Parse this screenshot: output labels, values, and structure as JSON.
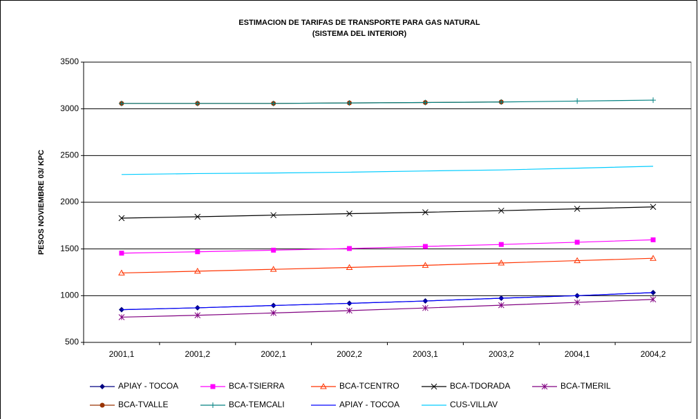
{
  "chart_data": {
    "type": "line",
    "title": "ESTIMACION DE TARIFAS DE TRANSPORTE PARA GAS NATURAL",
    "subtitle": "(SISTEMA DEL INTERIOR)",
    "y_label": "PESOS NOVIEMBRE 03/ KPC",
    "categories": [
      "2001,1",
      "2001,2",
      "2002,1",
      "2002,2",
      "2003,1",
      "2003,2",
      "2004,1",
      "2004,2"
    ],
    "ylim": [
      500,
      3500
    ],
    "yticks": [
      500,
      1000,
      1500,
      2000,
      2500,
      3000,
      3500
    ],
    "grid": true,
    "series": [
      {
        "name": "APIAY - TOCOA",
        "color": "#000080",
        "marker": "diamond",
        "values": [
          850,
          870,
          895,
          918,
          943,
          973,
          1000,
          1033
        ]
      },
      {
        "name": "BCA-TSIERRA",
        "color": "#ff00ff",
        "marker": "square",
        "values": [
          1455,
          1470,
          1487,
          1505,
          1527,
          1548,
          1572,
          1598
        ]
      },
      {
        "name": "BCA-TCENTRO",
        "color": "#ff3300",
        "marker": "triangle",
        "values": [
          1243,
          1262,
          1282,
          1302,
          1325,
          1350,
          1375,
          1400
        ]
      },
      {
        "name": "BCA-TDORADA",
        "color": "#000000",
        "marker": "x",
        "values": [
          1830,
          1845,
          1862,
          1878,
          1893,
          1910,
          1930,
          1950
        ]
      },
      {
        "name": "BCA-TMERIL",
        "color": "#800080",
        "marker": "star",
        "values": [
          770,
          790,
          815,
          840,
          868,
          898,
          928,
          960
        ]
      },
      {
        "name": "BCA-TVALLE",
        "color": "#993300",
        "marker": "circle",
        "values": [
          3058,
          3058,
          3058,
          3063,
          3068,
          3073,
          null,
          null
        ]
      },
      {
        "name": "BCA-TEMCALI",
        "color": "#008080",
        "marker": "plus",
        "values": [
          3058,
          3058,
          3058,
          3063,
          3068,
          3073,
          3083,
          3093
        ]
      },
      {
        "name": "APIAY - TOCOA",
        "color": "#0000ff",
        "marker": "none",
        "values": [
          850,
          870,
          895,
          918,
          943,
          973,
          1000,
          1033
        ]
      },
      {
        "name": "CUS-VILLAV",
        "color": "#00ccff",
        "marker": "none",
        "values": [
          2297,
          2307,
          2313,
          2322,
          2335,
          2346,
          2365,
          2385
        ]
      }
    ]
  }
}
